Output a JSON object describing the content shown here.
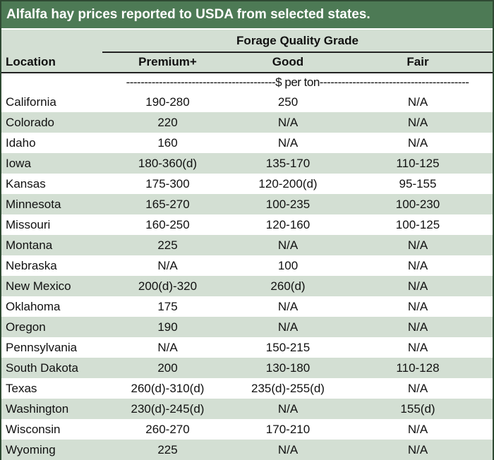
{
  "title": "Alfalfa hay prices reported to USDA from selected states.",
  "header": {
    "group_label": "Forage Quality Grade",
    "location_label": "Location",
    "columns": [
      "Premium+",
      "Good",
      "Fair"
    ],
    "unit_label": "-----------------------------------------$ per ton-----------------------------------------"
  },
  "rows": [
    {
      "location": "California",
      "premium": "190-280",
      "good": "250",
      "fair": "N/A"
    },
    {
      "location": "Colorado",
      "premium": "220",
      "good": "N/A",
      "fair": "N/A"
    },
    {
      "location": "Idaho",
      "premium": "160",
      "good": "N/A",
      "fair": "N/A"
    },
    {
      "location": "Iowa",
      "premium": "180-360(d)",
      "good": "135-170",
      "fair": "110-125"
    },
    {
      "location": "Kansas",
      "premium": "175-300",
      "good": "120-200(d)",
      "fair": "95-155"
    },
    {
      "location": "Minnesota",
      "premium": "165-270",
      "good": "100-235",
      "fair": "100-230"
    },
    {
      "location": "Missouri",
      "premium": "160-250",
      "good": "120-160",
      "fair": "100-125"
    },
    {
      "location": "Montana",
      "premium": "225",
      "good": "N/A",
      "fair": "N/A"
    },
    {
      "location": "Nebraska",
      "premium": "N/A",
      "good": "100",
      "fair": "N/A"
    },
    {
      "location": "New Mexico",
      "premium": "200(d)-320",
      "good": "260(d)",
      "fair": "N/A"
    },
    {
      "location": "Oklahoma",
      "premium": "175",
      "good": "N/A",
      "fair": "N/A"
    },
    {
      "location": "Oregon",
      "premium": "190",
      "good": "N/A",
      "fair": "N/A"
    },
    {
      "location": "Pennsylvania",
      "premium": "N/A",
      "good": "150-215",
      "fair": "N/A"
    },
    {
      "location": "South Dakota",
      "premium": "200",
      "good": "130-180",
      "fair": "110-128"
    },
    {
      "location": "Texas",
      "premium": "260(d)-310(d)",
      "good": "235(d)-255(d)",
      "fair": "N/A"
    },
    {
      "location": "Washington",
      "premium": "230(d)-245(d)",
      "good": "N/A",
      "fair": "155(d)"
    },
    {
      "location": "Wisconsin",
      "premium": "260-270",
      "good": "170-210",
      "fair": "N/A"
    },
    {
      "location": "Wyoming",
      "premium": "225",
      "good": "N/A",
      "fair": "N/A"
    }
  ]
}
